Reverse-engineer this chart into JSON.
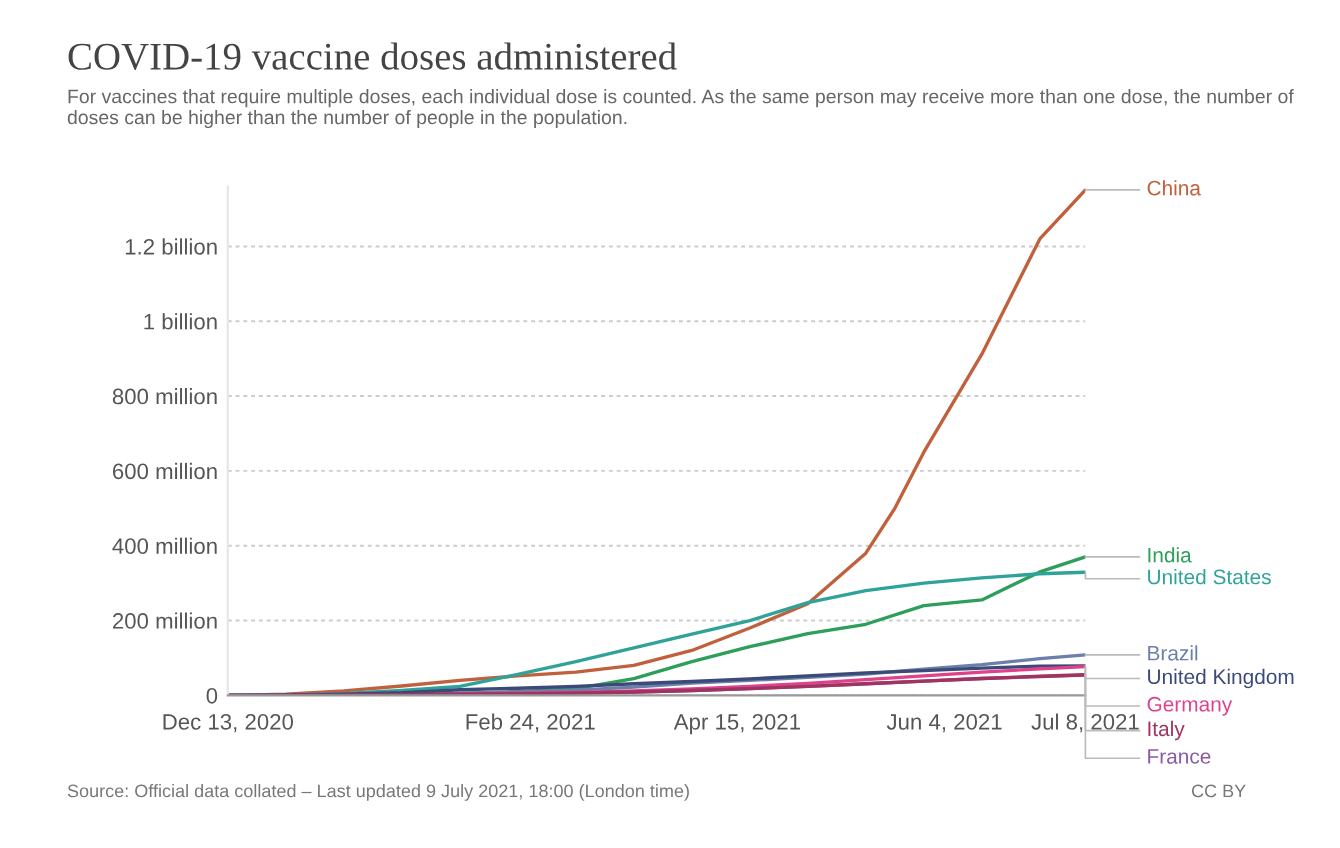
{
  "chart_data": {
    "type": "line",
    "title": "COVID-19 vaccine doses administered",
    "subtitle": "For vaccines that require multiple doses, each individual dose is counted. As the same person may receive more than one dose, the number of doses can be higher than the number of people in the population.",
    "x": [
      "2020-12-13",
      "2020-12-27",
      "2021-01-10",
      "2021-01-24",
      "2021-02-07",
      "2021-02-21",
      "2021-03-07",
      "2021-03-21",
      "2021-04-04",
      "2021-04-18",
      "2021-05-02",
      "2021-05-16",
      "2021-05-30",
      "2021-06-13",
      "2021-06-27",
      "2021-07-08"
    ],
    "series": [
      {
        "name": "China",
        "color": "#c0603c",
        "x": [
          "2020-12-13",
          "2020-12-27",
          "2021-01-10",
          "2021-01-24",
          "2021-02-07",
          "2021-02-21",
          "2021-03-07",
          "2021-03-21",
          "2021-04-04",
          "2021-04-18",
          "2021-05-02",
          "2021-05-16",
          "2021-05-23",
          "2021-05-30",
          "2021-06-13",
          "2021-06-27",
          "2021-07-08"
        ],
        "values": [
          0,
          3000000.0,
          12000000.0,
          25000000.0,
          40000000.0,
          52000000.0,
          62000000.0,
          80000000.0,
          120000000.0,
          180000000.0,
          245000000.0,
          380000000.0,
          500000000.0,
          650000000.0,
          912000000.0,
          1220000000.0,
          1351000000.0
        ]
      },
      {
        "name": "India",
        "color": "#2e9e5b",
        "values": [
          0,
          0,
          0,
          1000000.0,
          5000000.0,
          10000000.0,
          18000000.0,
          45000000.0,
          90000000.0,
          130000000.0,
          165000000.0,
          190000000.0,
          240000000.0,
          255000000.0,
          330000000.0,
          370000000.0
        ]
      },
      {
        "name": "United States",
        "color": "#2fa39a",
        "values": [
          0,
          1000000.0,
          5000000.0,
          13000000.0,
          24000000.0,
          56000000.0,
          90000000.0,
          127000000.0,
          164000000.0,
          200000000.0,
          248000000.0,
          280000000.0,
          300000000.0,
          314000000.0,
          325000000.0,
          329000000.0
        ]
      },
      {
        "name": "Brazil",
        "color": "#6b7fa8",
        "values": [
          0,
          0,
          0,
          1000000.0,
          5000000.0,
          9000000.0,
          14000000.0,
          22000000.0,
          33000000.0,
          40000000.0,
          48000000.0,
          57000000.0,
          70000000.0,
          82000000.0,
          98000000.0,
          108000000.0
        ]
      },
      {
        "name": "United Kingdom",
        "color": "#3b4a78",
        "values": [
          0,
          1000000.0,
          3000000.0,
          7000000.0,
          15000000.0,
          19000000.0,
          24000000.0,
          31000000.0,
          37000000.0,
          44000000.0,
          52000000.0,
          60000000.0,
          66000000.0,
          73000000.0,
          78000000.0,
          79000000.0
        ]
      },
      {
        "name": "Germany",
        "color": "#e0418a",
        "values": [
          null,
          null,
          null,
          null,
          4000000.0,
          6000000.0,
          8000000.0,
          12000000.0,
          17000000.0,
          24000000.0,
          32000000.0,
          42000000.0,
          52000000.0,
          62000000.0,
          71000000.0,
          77000000.0
        ]
      },
      {
        "name": "France",
        "color": "#8a5a9e",
        "values": [
          0,
          0,
          0,
          2000000.0,
          3000000.0,
          4000000.0,
          6000000.0,
          9000000.0,
          13000000.0,
          18000000.0,
          24000000.0,
          31000000.0,
          38000000.0,
          45000000.0,
          50000000.0,
          54000000.0
        ]
      },
      {
        "name": "Italy",
        "color": "#a03360",
        "values": [
          0,
          0,
          1000000.0,
          2000000.0,
          3000000.0,
          4000000.0,
          6000000.0,
          9000000.0,
          13000000.0,
          18000000.0,
          24000000.0,
          31000000.0,
          38000000.0,
          45000000.0,
          51000000.0,
          55000000.0
        ]
      }
    ],
    "xlim": [
      "2020-12-13",
      "2021-07-08"
    ],
    "xticks": [
      {
        "value": "2020-12-13",
        "label": "Dec 13, 2020"
      },
      {
        "value": "2021-02-24",
        "label": "Feb 24, 2021"
      },
      {
        "value": "2021-04-15",
        "label": "Apr 15, 2021"
      },
      {
        "value": "2021-06-04",
        "label": "Jun 4, 2021"
      },
      {
        "value": "2021-07-08",
        "label": "Jul 8, 2021"
      }
    ],
    "ylim": [
      0,
      1360000000.0
    ],
    "yticks": [
      {
        "value": 0,
        "label": "0"
      },
      {
        "value": 200000000.0,
        "label": "200 million"
      },
      {
        "value": 400000000.0,
        "label": "400 million"
      },
      {
        "value": 600000000.0,
        "label": "600 million"
      },
      {
        "value": 800000000.0,
        "label": "800 million"
      },
      {
        "value": 1000000000.0,
        "label": "1 billion"
      },
      {
        "value": 1200000000.0,
        "label": "1.2 billion"
      }
    ],
    "grid": "y",
    "line_style": "solid",
    "annotations": [
      "Source: Official data collated – Last updated 9 July 2021, 18:00 (London time)",
      "CC BY"
    ]
  }
}
